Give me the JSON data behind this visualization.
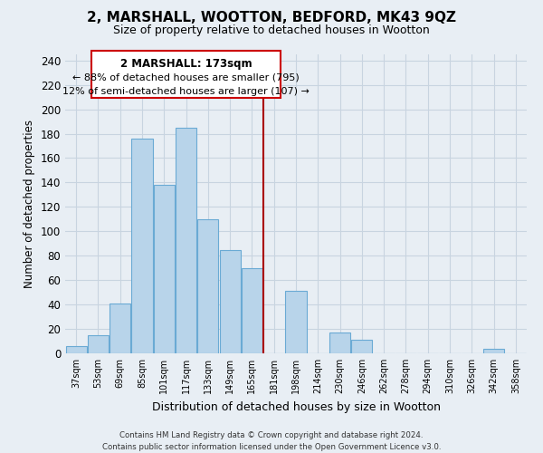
{
  "title": "2, MARSHALL, WOOTTON, BEDFORD, MK43 9QZ",
  "subtitle": "Size of property relative to detached houses in Wootton",
  "xlabel": "Distribution of detached houses by size in Wootton",
  "ylabel": "Number of detached properties",
  "bar_labels": [
    "37sqm",
    "53sqm",
    "69sqm",
    "85sqm",
    "101sqm",
    "117sqm",
    "133sqm",
    "149sqm",
    "165sqm",
    "181sqm",
    "198sqm",
    "214sqm",
    "230sqm",
    "246sqm",
    "262sqm",
    "278sqm",
    "294sqm",
    "310sqm",
    "326sqm",
    "342sqm",
    "358sqm"
  ],
  "bar_values": [
    6,
    15,
    41,
    176,
    138,
    185,
    110,
    85,
    70,
    0,
    51,
    0,
    17,
    11,
    0,
    0,
    0,
    0,
    0,
    4,
    0
  ],
  "bar_color": "#b8d4ea",
  "bar_edge_color": "#6aaad4",
  "vline_x": 9.0,
  "vline_color": "#aa0000",
  "annotation_title": "2 MARSHALL: 173sqm",
  "annotation_line1": "← 88% of detached houses are smaller (795)",
  "annotation_line2": "12% of semi-detached houses are larger (107) →",
  "annotation_box_color": "#ffffff",
  "annotation_border_color": "#cc0000",
  "ylim": [
    0,
    245
  ],
  "yticks": [
    0,
    20,
    40,
    60,
    80,
    100,
    120,
    140,
    160,
    180,
    200,
    220,
    240
  ],
  "footer_line1": "Contains HM Land Registry data © Crown copyright and database right 2024.",
  "footer_line2": "Contains public sector information licensed under the Open Government Licence v3.0.",
  "bg_color": "#e8eef4",
  "plot_bg_color": "#e8eef4",
  "grid_color": "#c8d4e0"
}
